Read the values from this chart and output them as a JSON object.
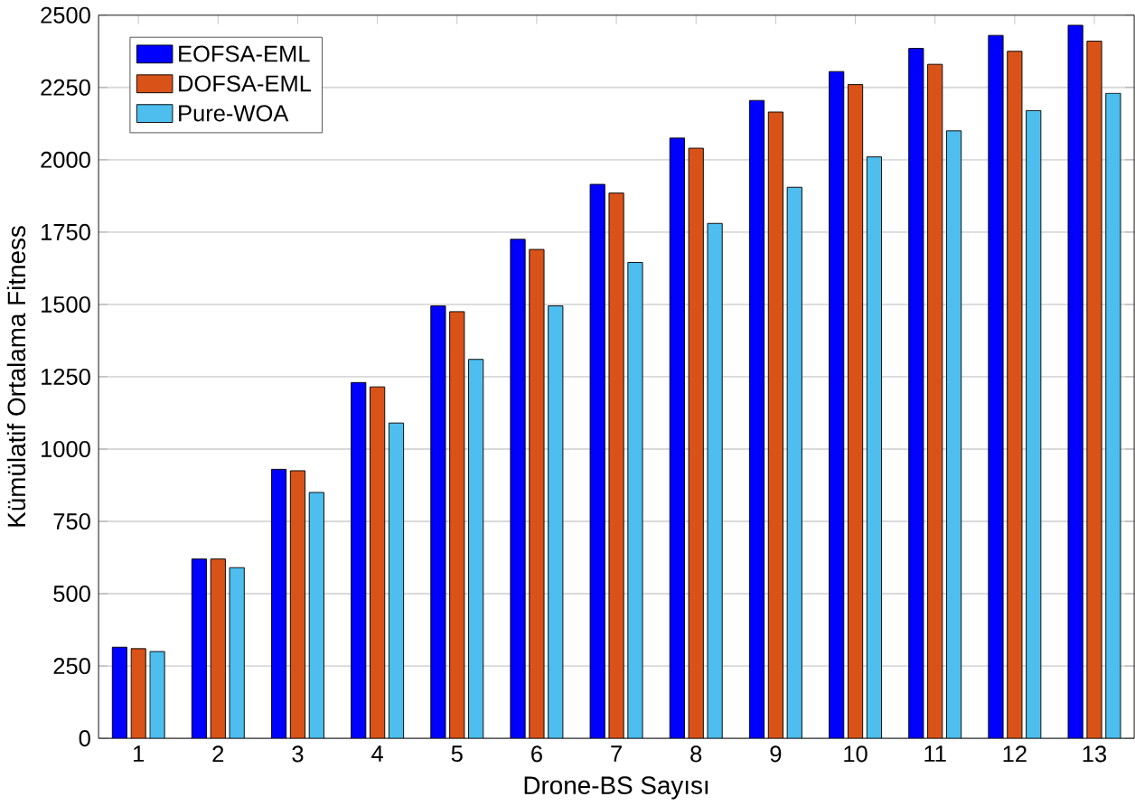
{
  "chart_data": {
    "type": "bar",
    "xlabel": "Drone-BS Sayısı",
    "ylabel": "Kümülatif Ortalama Fitness",
    "categories": [
      "1",
      "2",
      "3",
      "4",
      "5",
      "6",
      "7",
      "8",
      "9",
      "10",
      "11",
      "12",
      "13"
    ],
    "series": [
      {
        "name": "EOFSA-EML",
        "color": "#0000ff",
        "values": [
          315,
          620,
          930,
          1230,
          1495,
          1725,
          1915,
          2075,
          2205,
          2305,
          2385,
          2430,
          2465
        ]
      },
      {
        "name": "DOFSA-EML",
        "color": "#d95319",
        "values": [
          310,
          620,
          925,
          1215,
          1475,
          1690,
          1885,
          2040,
          2165,
          2260,
          2330,
          2375,
          2410
        ]
      },
      {
        "name": "Pure-WOA",
        "color": "#4dbeee",
        "values": [
          300,
          590,
          850,
          1090,
          1310,
          1495,
          1645,
          1780,
          1905,
          2010,
          2100,
          2170,
          2230
        ]
      }
    ],
    "ylim": [
      0,
      2500
    ],
    "yticks": [
      0,
      250,
      500,
      750,
      1000,
      1250,
      1500,
      1750,
      2000,
      2250,
      2500
    ],
    "grid": "y",
    "legend": "top left"
  }
}
